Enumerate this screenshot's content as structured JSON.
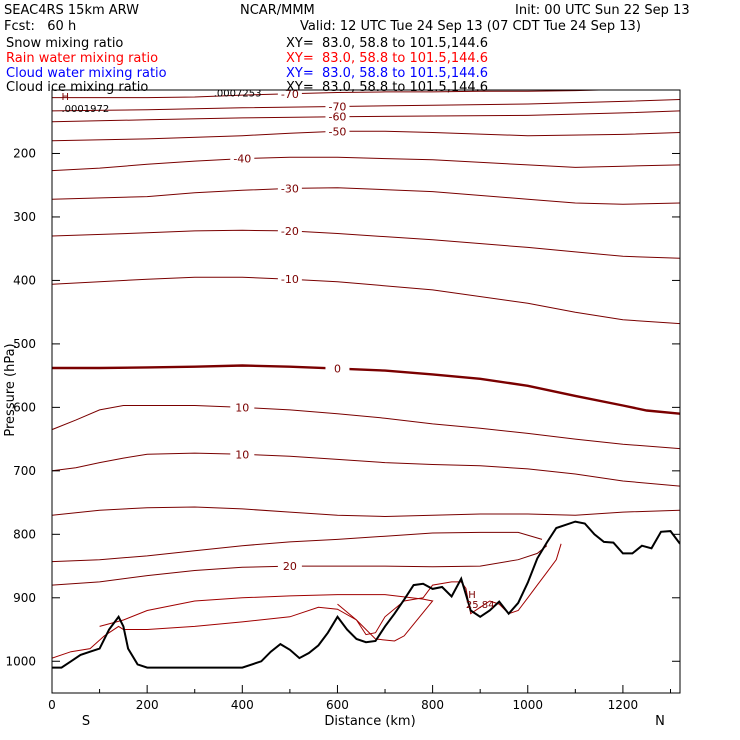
{
  "header": {
    "model": "SEAC4RS 15km ARW",
    "org": "NCAR/MMM",
    "init": "Init: 00 UTC Sun 22 Sep 13",
    "fcst": "Fcst:   60 h",
    "valid": "Valid: 12 UTC Tue 24 Sep 13 (07 CDT Tue 24 Sep 13)",
    "fields": [
      {
        "label": "Snow mixing ratio",
        "xy": "XY=  83.0, 58.8 to 101.5,144.6",
        "color": "#000000"
      },
      {
        "label": "Rain water mixing ratio",
        "xy": "XY=  83.0, 58.8 to 101.5,144.6",
        "color": "#ff0000"
      },
      {
        "label": "Cloud water mixing ratio",
        "xy": "XY=  83.0, 58.8 to 101.5,144.6",
        "color": "#0000ff"
      },
      {
        "label": "Cloud ice mixing ratio",
        "xy": "XY=  83.0, 58.8 to 101.5,144.6",
        "color": "#000000"
      }
    ]
  },
  "chart_data": {
    "type": "line",
    "xlabel": "Distance (km)",
    "ylabel": "Pressure (hPa)",
    "xlim": [
      0,
      1320
    ],
    "ylim": [
      1050,
      100
    ],
    "x_ticks": [
      "0",
      "200",
      "400",
      "600",
      "800",
      "1000",
      "1200"
    ],
    "x_tick_values": [
      0,
      200,
      400,
      600,
      800,
      1000,
      1200
    ],
    "y_ticks": [
      "200",
      "300",
      "400",
      "500",
      "600",
      "700",
      "800",
      "900",
      "1000"
    ],
    "y_tick_values": [
      200,
      300,
      400,
      500,
      600,
      700,
      800,
      900,
      1000
    ],
    "left_end_label": "S",
    "right_end_label": "N",
    "line_color": "#7a0000",
    "terrain_color": "#000000",
    "annotations": [
      {
        "text": "H",
        "x": 20,
        "p": 116
      },
      {
        "text": ".0001972",
        "x": 20,
        "p": 135
      },
      {
        "text": ".0007253",
        "x": 340,
        "p": 110
      },
      {
        "text": "H",
        "x": 875,
        "p": 900
      },
      {
        "text": "25.84",
        "x": 870,
        "p": 916
      }
    ],
    "temperature_isotherms": [
      {
        "label": "-70",
        "points": [
          [
            0,
            112
          ],
          [
            100,
            112
          ],
          [
            200,
            112
          ],
          [
            300,
            111
          ],
          [
            400,
            108
          ],
          [
            500,
            106
          ],
          [
            600,
            104
          ],
          [
            700,
            103
          ],
          [
            800,
            103
          ],
          [
            900,
            102
          ],
          [
            1000,
            102
          ],
          [
            1100,
            101
          ],
          [
            1150,
            100
          ]
        ]
      },
      {
        "label": "-70",
        "points": [
          [
            0,
            133
          ],
          [
            200,
            131
          ],
          [
            400,
            128
          ],
          [
            600,
            126
          ],
          [
            800,
            124
          ],
          [
            1000,
            122
          ],
          [
            1200,
            118
          ],
          [
            1320,
            115
          ]
        ]
      },
      {
        "label": "-60",
        "points": [
          [
            0,
            150
          ],
          [
            200,
            147
          ],
          [
            400,
            144
          ],
          [
            600,
            142
          ],
          [
            800,
            141
          ],
          [
            1000,
            140
          ],
          [
            1200,
            136
          ],
          [
            1320,
            133
          ]
        ]
      },
      {
        "label": "-50",
        "points": [
          [
            0,
            180
          ],
          [
            200,
            177
          ],
          [
            400,
            172
          ],
          [
            500,
            168
          ],
          [
            600,
            165
          ],
          [
            700,
            165
          ],
          [
            800,
            167
          ],
          [
            1000,
            172
          ],
          [
            1200,
            170
          ],
          [
            1320,
            167
          ]
        ]
      },
      {
        "label": "-40",
        "points": [
          [
            0,
            227
          ],
          [
            100,
            223
          ],
          [
            200,
            217
          ],
          [
            300,
            212
          ],
          [
            400,
            208
          ],
          [
            500,
            206
          ],
          [
            600,
            206
          ],
          [
            800,
            210
          ],
          [
            1000,
            218
          ],
          [
            1100,
            222
          ],
          [
            1200,
            220
          ],
          [
            1320,
            218
          ]
        ]
      },
      {
        "label": "-30",
        "points": [
          [
            0,
            272
          ],
          [
            200,
            268
          ],
          [
            300,
            262
          ],
          [
            400,
            258
          ],
          [
            500,
            255
          ],
          [
            600,
            254
          ],
          [
            800,
            260
          ],
          [
            1000,
            272
          ],
          [
            1100,
            278
          ],
          [
            1200,
            280
          ],
          [
            1320,
            278
          ]
        ]
      },
      {
        "label": "-20",
        "points": [
          [
            0,
            330
          ],
          [
            200,
            325
          ],
          [
            300,
            322
          ],
          [
            400,
            321
          ],
          [
            500,
            322
          ],
          [
            600,
            326
          ],
          [
            800,
            336
          ],
          [
            1000,
            348
          ],
          [
            1100,
            355
          ],
          [
            1200,
            362
          ],
          [
            1320,
            365
          ]
        ]
      },
      {
        "label": "-10",
        "points": [
          [
            0,
            406
          ],
          [
            200,
            398
          ],
          [
            300,
            395
          ],
          [
            400,
            395
          ],
          [
            500,
            398
          ],
          [
            600,
            402
          ],
          [
            800,
            415
          ],
          [
            1000,
            436
          ],
          [
            1100,
            450
          ],
          [
            1200,
            462
          ],
          [
            1320,
            468
          ]
        ]
      },
      {
        "label": "0",
        "bold": true,
        "points": [
          [
            0,
            538
          ],
          [
            100,
            538
          ],
          [
            200,
            537
          ],
          [
            300,
            536
          ],
          [
            400,
            534
          ],
          [
            500,
            536
          ],
          [
            600,
            539
          ],
          [
            700,
            542
          ],
          [
            800,
            548
          ],
          [
            900,
            555
          ],
          [
            1000,
            566
          ],
          [
            1100,
            582
          ],
          [
            1200,
            597
          ],
          [
            1250,
            605
          ],
          [
            1320,
            610
          ]
        ]
      },
      {
        "label": "10",
        "points": [
          [
            0,
            635
          ],
          [
            50,
            620
          ],
          [
            100,
            604
          ],
          [
            150,
            597
          ],
          [
            200,
            597
          ],
          [
            300,
            597
          ],
          [
            400,
            600
          ],
          [
            500,
            604
          ],
          [
            600,
            610
          ],
          [
            700,
            617
          ],
          [
            800,
            626
          ],
          [
            900,
            633
          ],
          [
            1000,
            641
          ],
          [
            1100,
            650
          ],
          [
            1200,
            658
          ],
          [
            1320,
            665
          ]
        ]
      },
      {
        "label": "10",
        "points": [
          [
            0,
            700
          ],
          [
            50,
            695
          ],
          [
            100,
            687
          ],
          [
            150,
            680
          ],
          [
            200,
            674
          ],
          [
            300,
            672
          ],
          [
            400,
            674
          ],
          [
            500,
            677
          ],
          [
            600,
            682
          ],
          [
            700,
            687
          ],
          [
            800,
            690
          ],
          [
            900,
            692
          ],
          [
            1000,
            697
          ],
          [
            1100,
            705
          ],
          [
            1200,
            716
          ],
          [
            1320,
            724
          ]
        ]
      },
      {
        "label": "",
        "points": [
          [
            0,
            770
          ],
          [
            100,
            762
          ],
          [
            200,
            758
          ],
          [
            300,
            757
          ],
          [
            400,
            760
          ],
          [
            500,
            765
          ],
          [
            600,
            770
          ],
          [
            700,
            772
          ],
          [
            800,
            770
          ],
          [
            900,
            768
          ],
          [
            1000,
            768
          ],
          [
            1100,
            770
          ],
          [
            1200,
            765
          ],
          [
            1320,
            762
          ]
        ]
      },
      {
        "label": "",
        "points": [
          [
            0,
            843
          ],
          [
            100,
            840
          ],
          [
            200,
            834
          ],
          [
            300,
            826
          ],
          [
            400,
            818
          ],
          [
            500,
            812
          ],
          [
            600,
            808
          ],
          [
            700,
            803
          ],
          [
            800,
            798
          ],
          [
            900,
            797
          ],
          [
            980,
            797
          ],
          [
            1030,
            808
          ]
        ]
      },
      {
        "label": "20",
        "points": [
          [
            0,
            880
          ],
          [
            100,
            875
          ],
          [
            200,
            865
          ],
          [
            300,
            857
          ],
          [
            400,
            852
          ],
          [
            500,
            850
          ],
          [
            600,
            850
          ],
          [
            700,
            850
          ],
          [
            800,
            851
          ],
          [
            900,
            850
          ],
          [
            980,
            840
          ],
          [
            1020,
            830
          ],
          [
            1040,
            818
          ]
        ]
      }
    ],
    "terrain": {
      "x": [
        0,
        20,
        40,
        60,
        80,
        100,
        120,
        140,
        150,
        160,
        180,
        200,
        300,
        400,
        440,
        460,
        480,
        500,
        520,
        540,
        560,
        580,
        600,
        620,
        640,
        660,
        680,
        700,
        720,
        740,
        760,
        780,
        800,
        820,
        840,
        860,
        880,
        900,
        920,
        940,
        960,
        980,
        1000,
        1020,
        1040,
        1060,
        1080,
        1100,
        1120,
        1140,
        1160,
        1180,
        1200,
        1220,
        1240,
        1260,
        1280,
        1300,
        1320
      ],
      "p": [
        1010,
        1010,
        1000,
        990,
        985,
        980,
        950,
        930,
        945,
        980,
        1005,
        1010,
        1010,
        1010,
        1000,
        985,
        973,
        982,
        995,
        987,
        975,
        955,
        930,
        950,
        965,
        970,
        968,
        945,
        925,
        903,
        880,
        878,
        886,
        883,
        898,
        870,
        920,
        930,
        920,
        906,
        925,
        908,
        876,
        838,
        813,
        790,
        785,
        780,
        783,
        800,
        812,
        813,
        830,
        830,
        818,
        822,
        796,
        795,
        815
      ]
    },
    "rain_water_contour": {
      "points": [
        [
          0,
          995
        ],
        [
          40,
          985
        ],
        [
          80,
          980
        ],
        [
          110,
          960
        ],
        [
          140,
          945
        ],
        [
          150,
          950
        ],
        [
          200,
          950
        ],
        [
          300,
          945
        ],
        [
          400,
          938
        ],
        [
          500,
          930
        ],
        [
          560,
          915
        ],
        [
          600,
          918
        ],
        [
          640,
          935
        ],
        [
          660,
          958
        ],
        [
          680,
          955
        ],
        [
          700,
          930
        ],
        [
          740,
          905
        ],
        [
          780,
          900
        ],
        [
          800,
          880
        ],
        [
          840,
          875
        ],
        [
          860,
          875
        ],
        [
          870,
          885
        ],
        [
          880,
          925
        ],
        [
          900,
          915
        ],
        [
          920,
          905
        ],
        [
          940,
          910
        ],
        [
          960,
          925
        ],
        [
          980,
          920
        ],
        [
          1000,
          900
        ],
        [
          1020,
          880
        ],
        [
          1040,
          860
        ],
        [
          1060,
          840
        ],
        [
          1070,
          815
        ]
      ]
    },
    "snow_contour": {
      "points": [
        [
          100,
          945
        ],
        [
          150,
          935
        ],
        [
          200,
          920
        ],
        [
          300,
          905
        ],
        [
          400,
          900
        ],
        [
          500,
          897
        ],
        [
          600,
          895
        ],
        [
          700,
          895
        ],
        [
          780,
          902
        ],
        [
          800,
          905
        ],
        [
          740,
          960
        ],
        [
          720,
          968
        ],
        [
          680,
          965
        ],
        [
          640,
          935
        ],
        [
          600,
          910
        ]
      ]
    }
  }
}
